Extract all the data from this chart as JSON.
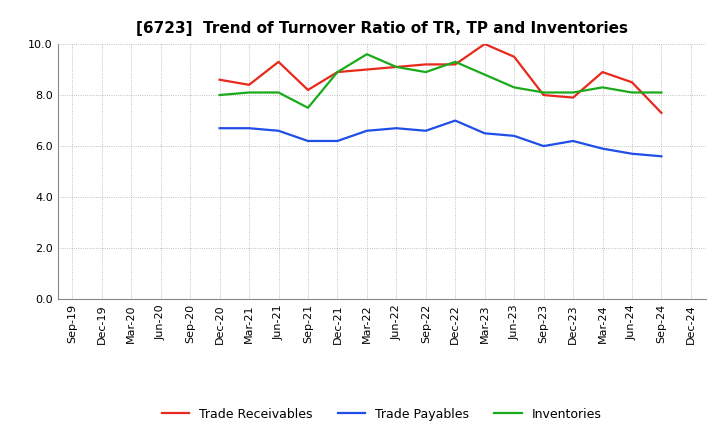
{
  "title": "[6723]  Trend of Turnover Ratio of TR, TP and Inventories",
  "ylim": [
    0.0,
    10.0
  ],
  "yticks": [
    0.0,
    2.0,
    4.0,
    6.0,
    8.0,
    10.0
  ],
  "x_labels": [
    "Sep-19",
    "Dec-19",
    "Mar-20",
    "Jun-20",
    "Sep-20",
    "Dec-20",
    "Mar-21",
    "Jun-21",
    "Sep-21",
    "Dec-21",
    "Mar-22",
    "Jun-22",
    "Sep-22",
    "Dec-22",
    "Mar-23",
    "Jun-23",
    "Sep-23",
    "Dec-23",
    "Mar-24",
    "Jun-24",
    "Sep-24",
    "Dec-24"
  ],
  "trade_receivables": [
    null,
    null,
    null,
    null,
    null,
    8.6,
    8.4,
    9.3,
    8.2,
    8.9,
    9.0,
    9.1,
    9.2,
    9.2,
    10.0,
    9.5,
    8.0,
    7.9,
    8.9,
    8.5,
    7.3,
    null
  ],
  "trade_payables": [
    null,
    null,
    null,
    null,
    null,
    6.7,
    6.7,
    6.6,
    6.2,
    6.2,
    6.6,
    6.7,
    6.6,
    7.0,
    6.5,
    6.4,
    6.0,
    6.2,
    5.9,
    5.7,
    5.6,
    null
  ],
  "inventories": [
    null,
    null,
    null,
    null,
    null,
    8.0,
    8.1,
    8.1,
    7.5,
    8.9,
    9.6,
    9.1,
    8.9,
    9.3,
    8.8,
    8.3,
    8.1,
    8.1,
    8.3,
    8.1,
    8.1,
    null
  ],
  "color_tr": "#e8291c",
  "color_tp": "#1f4ee8",
  "color_inv": "#1aaa1a",
  "line_width": 1.6,
  "background_color": "#ffffff",
  "grid_color": "#999999",
  "title_fontsize": 11,
  "tick_fontsize": 8,
  "legend_fontsize": 9
}
